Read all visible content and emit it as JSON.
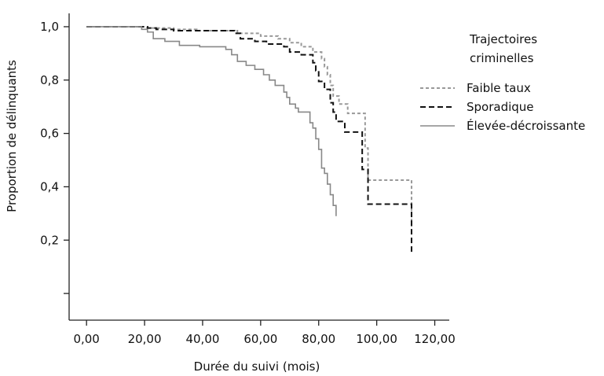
{
  "chart_data": {
    "type": "line",
    "title": "",
    "xlabel": "Durée du suivi (mois)",
    "ylabel": "Proportion de délinquants",
    "xlim": [
      -6,
      125
    ],
    "ylim": [
      -0.1,
      1.05
    ],
    "x_ticks": [
      {
        "value": 0,
        "label": "0,00"
      },
      {
        "value": 20,
        "label": "20,00"
      },
      {
        "value": 40,
        "label": "40,00"
      },
      {
        "value": 60,
        "label": "60,00"
      },
      {
        "value": 80,
        "label": "80,00"
      },
      {
        "value": 100,
        "label": "100,00"
      },
      {
        "value": 120,
        "label": "120,00"
      }
    ],
    "y_ticks": [
      {
        "value": 0.0,
        "label": ""
      },
      {
        "value": 0.2,
        "label": "0,2"
      },
      {
        "value": 0.4,
        "label": "0,4"
      },
      {
        "value": 0.6,
        "label": "0,6"
      },
      {
        "value": 0.8,
        "label": "0,8"
      },
      {
        "value": 1.0,
        "label": "1,0"
      }
    ],
    "legend": {
      "title_lines": [
        "Trajectoires",
        "criminelles"
      ],
      "placement": "right"
    },
    "grid": false,
    "series": [
      {
        "name": "Faible taux",
        "style": "dotted",
        "color": "#999999",
        "points": [
          [
            0,
            1.0
          ],
          [
            21,
            1.0
          ],
          [
            21,
            0.995
          ],
          [
            30,
            0.995
          ],
          [
            30,
            0.99
          ],
          [
            38,
            0.99
          ],
          [
            38,
            0.985
          ],
          [
            52,
            0.985
          ],
          [
            52,
            0.975
          ],
          [
            60,
            0.975
          ],
          [
            60,
            0.965
          ],
          [
            66,
            0.965
          ],
          [
            66,
            0.955
          ],
          [
            70,
            0.955
          ],
          [
            70,
            0.94
          ],
          [
            74,
            0.94
          ],
          [
            74,
            0.925
          ],
          [
            78,
            0.925
          ],
          [
            78,
            0.905
          ],
          [
            81,
            0.905
          ],
          [
            81,
            0.88
          ],
          [
            82,
            0.88
          ],
          [
            82,
            0.85
          ],
          [
            83,
            0.85
          ],
          [
            83,
            0.82
          ],
          [
            84,
            0.82
          ],
          [
            84,
            0.78
          ],
          [
            85,
            0.78
          ],
          [
            85,
            0.74
          ],
          [
            87,
            0.74
          ],
          [
            87,
            0.71
          ],
          [
            90,
            0.71
          ],
          [
            90,
            0.675
          ],
          [
            96,
            0.675
          ],
          [
            96,
            0.545
          ],
          [
            97,
            0.545
          ],
          [
            97,
            0.425
          ],
          [
            112,
            0.425
          ],
          [
            112,
            0.25
          ]
        ]
      },
      {
        "name": "Sporadique",
        "style": "dashed",
        "color": "#111111",
        "points": [
          [
            0,
            1.0
          ],
          [
            21,
            1.0
          ],
          [
            21,
            0.995
          ],
          [
            24,
            0.995
          ],
          [
            24,
            0.99
          ],
          [
            30,
            0.99
          ],
          [
            30,
            0.985
          ],
          [
            51,
            0.985
          ],
          [
            51,
            0.975
          ],
          [
            53,
            0.975
          ],
          [
            53,
            0.955
          ],
          [
            58,
            0.955
          ],
          [
            58,
            0.945
          ],
          [
            62,
            0.945
          ],
          [
            62,
            0.935
          ],
          [
            68,
            0.935
          ],
          [
            68,
            0.925
          ],
          [
            70,
            0.925
          ],
          [
            70,
            0.905
          ],
          [
            74,
            0.905
          ],
          [
            74,
            0.895
          ],
          [
            78,
            0.895
          ],
          [
            78,
            0.865
          ],
          [
            79,
            0.865
          ],
          [
            79,
            0.835
          ],
          [
            80,
            0.835
          ],
          [
            80,
            0.795
          ],
          [
            82,
            0.795
          ],
          [
            82,
            0.765
          ],
          [
            84,
            0.765
          ],
          [
            84,
            0.715
          ],
          [
            85,
            0.715
          ],
          [
            85,
            0.68
          ],
          [
            86,
            0.68
          ],
          [
            86,
            0.645
          ],
          [
            89,
            0.645
          ],
          [
            89,
            0.605
          ],
          [
            95,
            0.605
          ],
          [
            95,
            0.465
          ],
          [
            97,
            0.465
          ],
          [
            97,
            0.335
          ],
          [
            112,
            0.335
          ],
          [
            112,
            0.15
          ]
        ]
      },
      {
        "name": "Élevée-décroissante",
        "style": "solid",
        "color": "#888888",
        "points": [
          [
            0,
            1.0
          ],
          [
            19,
            1.0
          ],
          [
            19,
            0.99
          ],
          [
            21,
            0.99
          ],
          [
            21,
            0.98
          ],
          [
            23,
            0.98
          ],
          [
            23,
            0.955
          ],
          [
            27,
            0.955
          ],
          [
            27,
            0.945
          ],
          [
            32,
            0.945
          ],
          [
            32,
            0.93
          ],
          [
            39,
            0.93
          ],
          [
            39,
            0.925
          ],
          [
            48,
            0.925
          ],
          [
            48,
            0.915
          ],
          [
            50,
            0.915
          ],
          [
            50,
            0.895
          ],
          [
            52,
            0.895
          ],
          [
            52,
            0.87
          ],
          [
            55,
            0.87
          ],
          [
            55,
            0.855
          ],
          [
            58,
            0.855
          ],
          [
            58,
            0.84
          ],
          [
            61,
            0.84
          ],
          [
            61,
            0.82
          ],
          [
            63,
            0.82
          ],
          [
            63,
            0.8
          ],
          [
            65,
            0.8
          ],
          [
            65,
            0.78
          ],
          [
            68,
            0.78
          ],
          [
            68,
            0.755
          ],
          [
            69,
            0.755
          ],
          [
            69,
            0.735
          ],
          [
            70,
            0.735
          ],
          [
            70,
            0.71
          ],
          [
            72,
            0.71
          ],
          [
            72,
            0.695
          ],
          [
            73,
            0.695
          ],
          [
            73,
            0.68
          ],
          [
            77,
            0.68
          ],
          [
            77,
            0.64
          ],
          [
            78,
            0.64
          ],
          [
            78,
            0.62
          ],
          [
            79,
            0.62
          ],
          [
            79,
            0.58
          ],
          [
            80,
            0.58
          ],
          [
            80,
            0.54
          ],
          [
            81,
            0.54
          ],
          [
            81,
            0.47
          ],
          [
            82,
            0.47
          ],
          [
            82,
            0.45
          ],
          [
            83,
            0.45
          ],
          [
            83,
            0.41
          ],
          [
            84,
            0.41
          ],
          [
            84,
            0.37
          ],
          [
            85,
            0.37
          ],
          [
            85,
            0.33
          ],
          [
            86,
            0.33
          ],
          [
            86,
            0.29
          ]
        ]
      }
    ]
  }
}
